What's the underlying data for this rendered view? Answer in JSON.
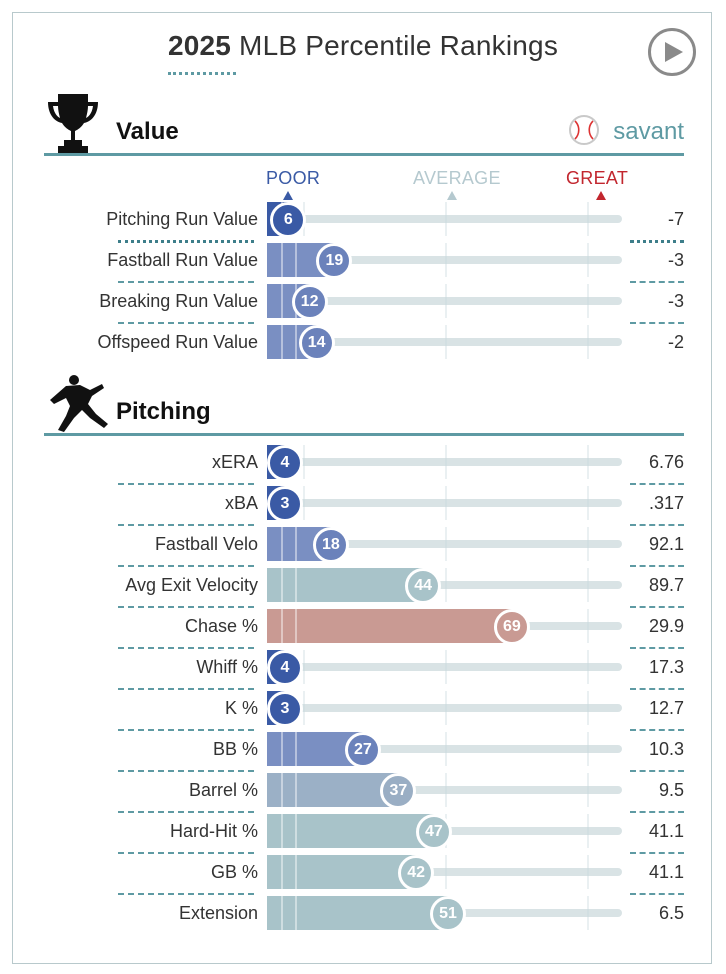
{
  "header": {
    "title_year": "2025",
    "title_rest": "MLB Percentile Rankings"
  },
  "branding": {
    "savant_label": "savant"
  },
  "icons": {
    "play": "play-icon",
    "trophy": "trophy-icon",
    "pitcher": "pitcher-icon",
    "baseball": "baseball-icon"
  },
  "legend": {
    "poor": "POOR",
    "average": "AVERAGE",
    "great": "GREAT"
  },
  "colors": {
    "poor": "#3a5aa5",
    "below_avg": "#7a8fc2",
    "avg": "#a8c3c9",
    "great": "#c2262e",
    "above_avg": "#c99a93",
    "accent": "#5e9aa3"
  },
  "chart_data": {
    "type": "bar",
    "scale": [
      0,
      100
    ],
    "sections": [
      {
        "name": "Value",
        "rows": [
          {
            "label": "Pitching Run Value",
            "percentile": 6,
            "value": "-7"
          },
          {
            "label": "Fastball Run Value",
            "percentile": 19,
            "value": "-3"
          },
          {
            "label": "Breaking Run Value",
            "percentile": 12,
            "value": "-3"
          },
          {
            "label": "Offspeed Run Value",
            "percentile": 14,
            "value": "-2"
          }
        ]
      },
      {
        "name": "Pitching",
        "rows": [
          {
            "label": "xERA",
            "percentile": 4,
            "value": "6.76"
          },
          {
            "label": "xBA",
            "percentile": 3,
            "value": ".317"
          },
          {
            "label": "Fastball Velo",
            "percentile": 18,
            "value": "92.1"
          },
          {
            "label": "Avg Exit Velocity",
            "percentile": 44,
            "value": "89.7"
          },
          {
            "label": "Chase %",
            "percentile": 69,
            "value": "29.9"
          },
          {
            "label": "Whiff %",
            "percentile": 4,
            "value": "17.3"
          },
          {
            "label": "K %",
            "percentile": 3,
            "value": "12.7"
          },
          {
            "label": "BB %",
            "percentile": 27,
            "value": "10.3"
          },
          {
            "label": "Barrel %",
            "percentile": 37,
            "value": "9.5"
          },
          {
            "label": "Hard-Hit %",
            "percentile": 47,
            "value": "41.1"
          },
          {
            "label": "GB %",
            "percentile": 42,
            "value": "41.1"
          },
          {
            "label": "Extension",
            "percentile": 51,
            "value": "6.5"
          }
        ]
      }
    ]
  }
}
